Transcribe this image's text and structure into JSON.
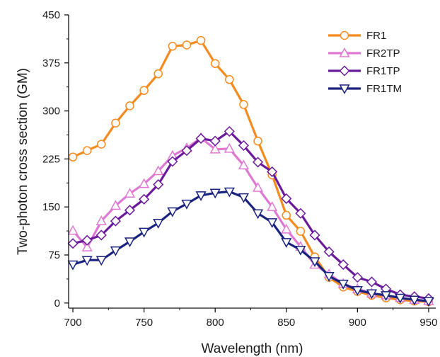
{
  "chart_data": {
    "type": "line",
    "xlabel": "Wavelength (nm)",
    "ylabel": "Two-photon cross section (GM)",
    "xlim": [
      697,
      955
    ],
    "ylim": [
      -8,
      450
    ],
    "xticks": [
      700,
      750,
      800,
      850,
      900,
      950
    ],
    "yticks": [
      0,
      75,
      150,
      225,
      300,
      375,
      450
    ],
    "grid": false,
    "legend_position": "top-right",
    "x": [
      700,
      705,
      710,
      715,
      720,
      725,
      730,
      735,
      740,
      745,
      750,
      755,
      760,
      765,
      770,
      775,
      780,
      785,
      790,
      795,
      800,
      805,
      810,
      815,
      820,
      825,
      830,
      835,
      840,
      845,
      850,
      855,
      860,
      865,
      870,
      875,
      880,
      885,
      890,
      895,
      900,
      905,
      910,
      915,
      920,
      925,
      930,
      935,
      940,
      945,
      950
    ],
    "series": [
      {
        "name": "FR1",
        "color": "#f58b1f",
        "marker": "circle",
        "values": [
          228,
          null,
          238,
          null,
          248,
          null,
          281,
          null,
          308,
          null,
          332,
          null,
          358,
          null,
          401,
          null,
          403,
          null,
          410,
          null,
          374,
          null,
          349,
          null,
          310,
          null,
          253,
          null,
          200,
          null,
          137,
          null,
          112,
          null,
          72,
          null,
          40,
          null,
          25,
          null,
          18,
          null,
          12,
          null,
          8,
          null,
          5,
          null,
          3,
          null,
          2
        ]
      },
      {
        "name": "FR2TP",
        "color": "#df78d2",
        "marker": "triangle-up",
        "values": [
          113,
          null,
          87,
          null,
          128,
          null,
          152,
          null,
          171,
          null,
          186,
          null,
          206,
          null,
          230,
          null,
          242,
          null,
          258,
          null,
          240,
          null,
          241,
          null,
          215,
          null,
          180,
          null,
          150,
          null,
          115,
          null,
          88,
          null,
          60,
          null,
          45,
          null,
          30,
          null,
          22,
          null,
          15,
          null,
          12,
          null,
          8,
          null,
          5,
          null,
          3
        ]
      },
      {
        "name": "FR1TP",
        "color": "#6a1b9a",
        "marker": "diamond",
        "values": [
          93,
          null,
          98,
          null,
          106,
          null,
          128,
          null,
          145,
          null,
          162,
          null,
          185,
          null,
          221,
          null,
          238,
          null,
          257,
          null,
          253,
          null,
          268,
          null,
          246,
          null,
          220,
          null,
          205,
          null,
          163,
          null,
          140,
          null,
          106,
          null,
          80,
          null,
          60,
          null,
          40,
          null,
          33,
          null,
          22,
          null,
          13,
          null,
          10,
          null,
          7
        ]
      },
      {
        "name": "FR1TM",
        "color": "#1a237e",
        "marker": "triangle-down",
        "values": [
          60,
          null,
          67,
          null,
          67,
          null,
          82,
          null,
          96,
          null,
          111,
          null,
          125,
          null,
          143,
          null,
          155,
          null,
          168,
          null,
          172,
          null,
          174,
          null,
          165,
          null,
          140,
          null,
          126,
          null,
          95,
          null,
          83,
          null,
          65,
          null,
          42,
          null,
          30,
          null,
          20,
          null,
          15,
          null,
          12,
          null,
          8,
          null,
          5,
          null,
          3
        ]
      }
    ]
  }
}
